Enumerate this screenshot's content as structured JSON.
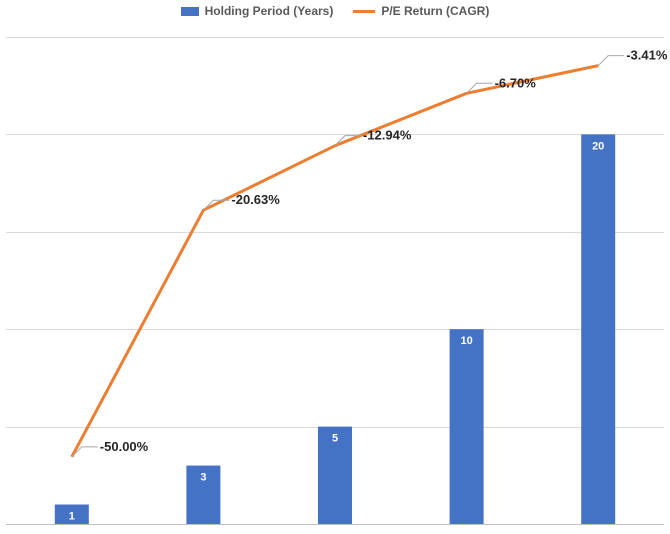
{
  "chart_data": {
    "type": "bar",
    "categories": [
      "",
      "",
      "",
      "",
      ""
    ],
    "series": [
      {
        "name": "Holding Period (Years)",
        "type": "bar",
        "values": [
          1,
          3,
          5,
          10,
          20
        ],
        "data_labels": [
          "1",
          "3",
          "5",
          "10",
          "20"
        ],
        "color": "#4472C4",
        "axis": "left"
      },
      {
        "name": "P/E Return (CAGR)",
        "type": "line",
        "values": [
          -50.0,
          -20.63,
          -12.94,
          -6.7,
          -3.41
        ],
        "data_labels": [
          "-50.00%",
          "-20.63%",
          "-12.94%",
          "-6.70%",
          "-3.41%"
        ],
        "color": "#ED7D31",
        "axis": "right"
      }
    ],
    "bar_axis_range": [
      0,
      25
    ],
    "line_axis_range": [
      -58,
      0
    ],
    "grid": true,
    "legend_position": "top",
    "axis_tick_labels_visible": false,
    "title": "",
    "xlabel": "",
    "ylabel": ""
  }
}
